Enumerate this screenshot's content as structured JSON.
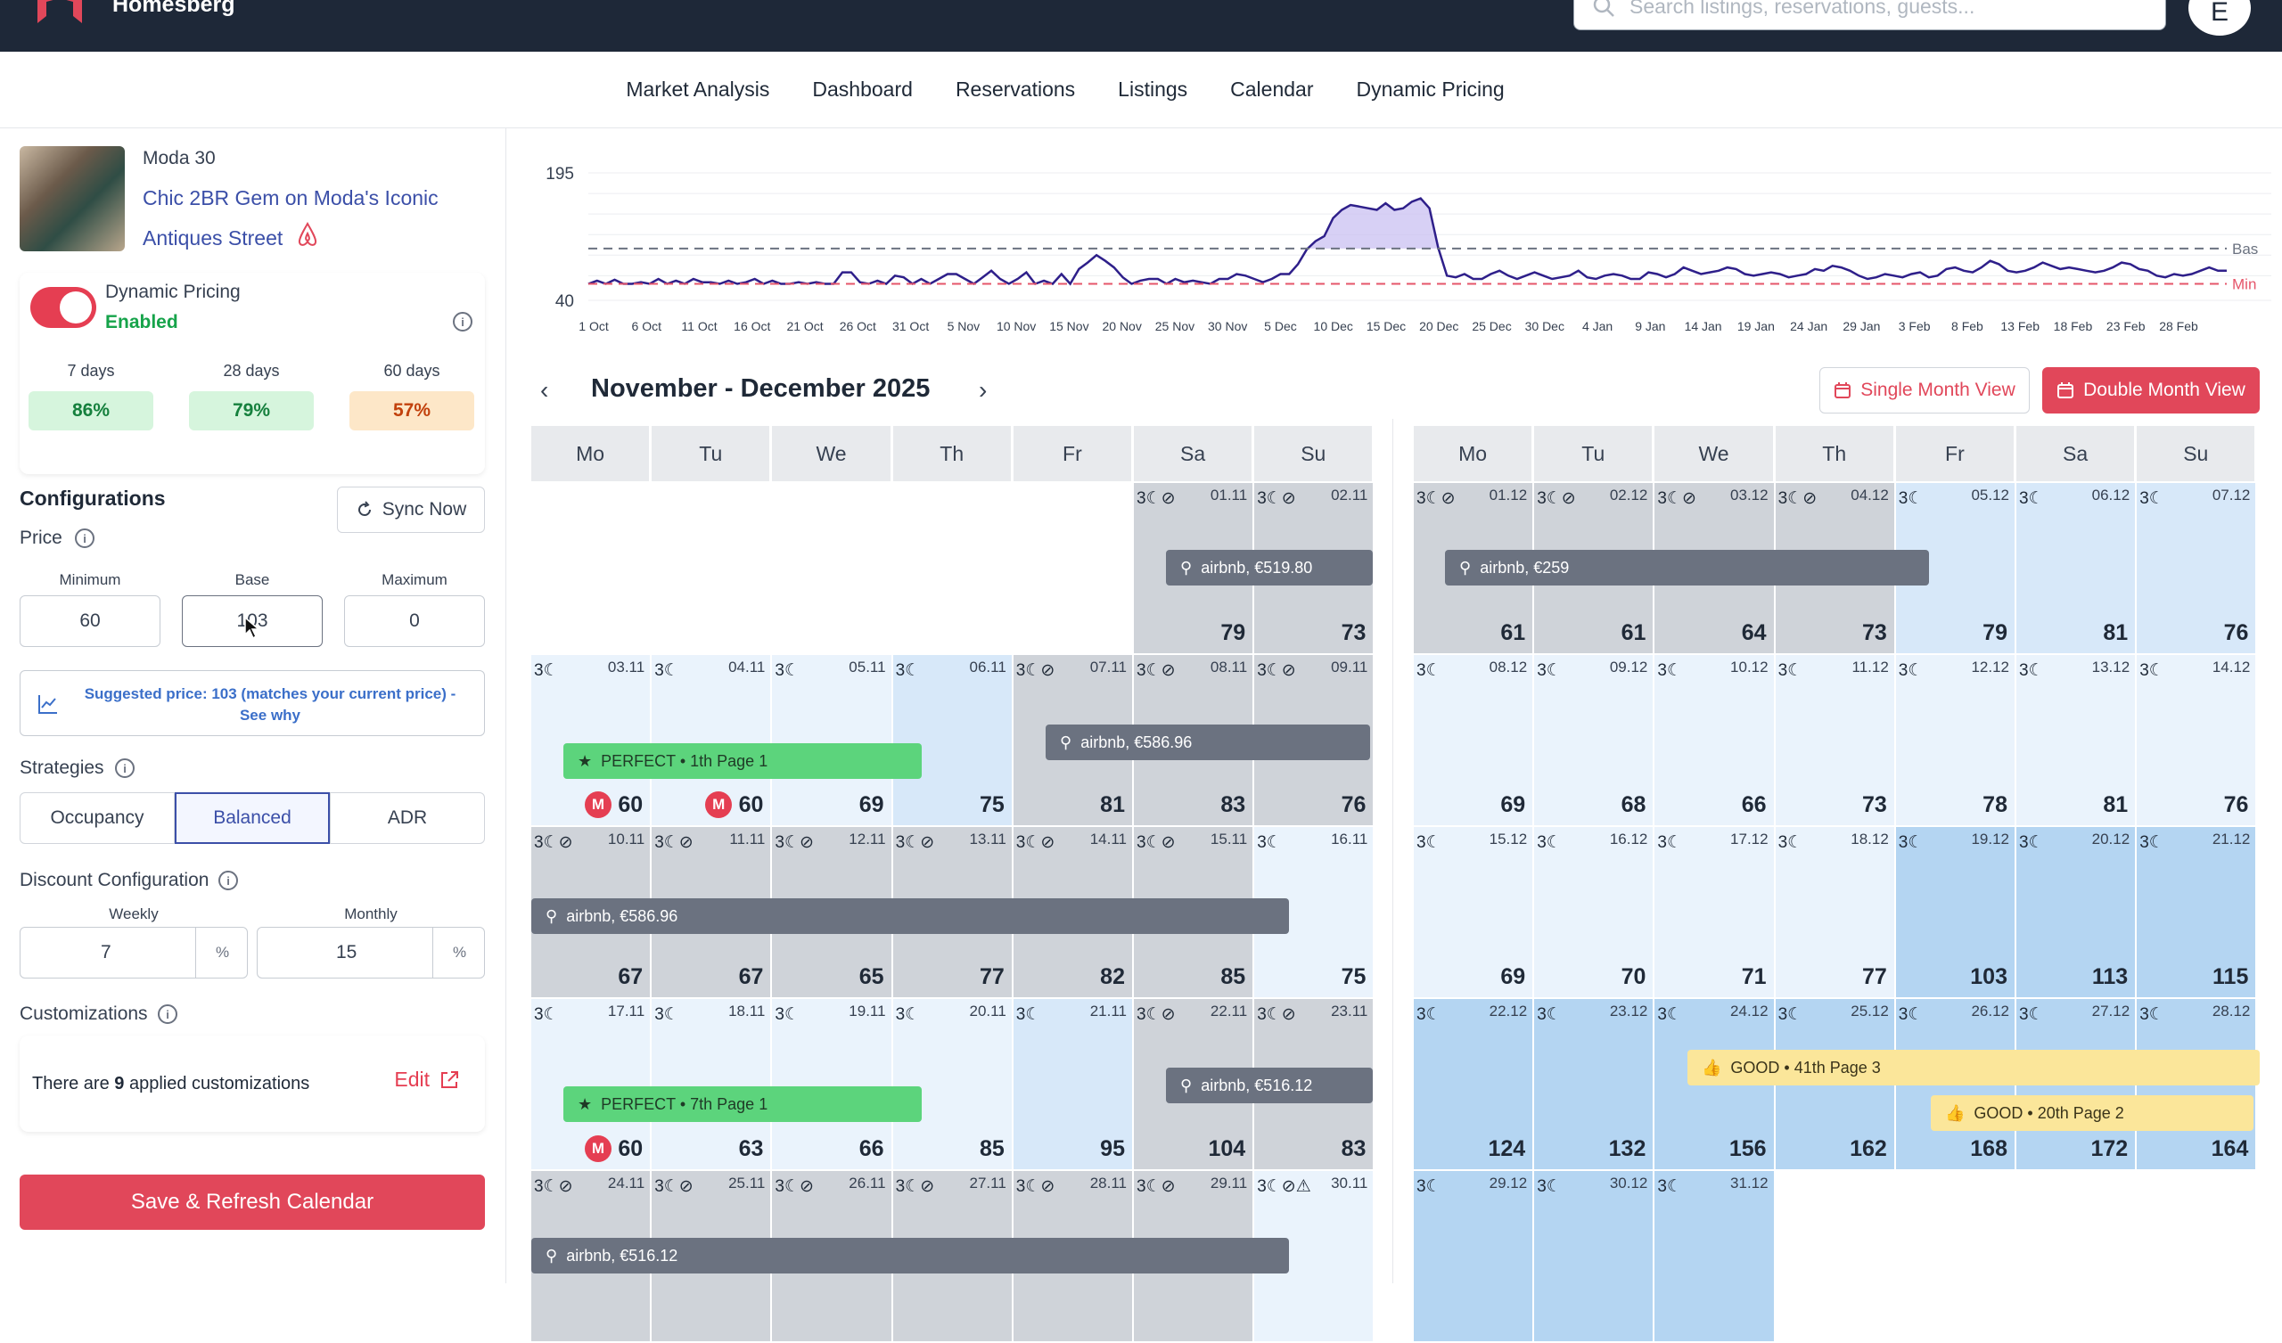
{
  "app": {
    "brand": "Homesberg",
    "search_placeholder": "Search listings, reservations, guests...",
    "avatar_letter": "E"
  },
  "nav": [
    "Market Analysis",
    "Dashboard",
    "Reservations",
    "Listings",
    "Calendar",
    "Dynamic Pricing"
  ],
  "listing": {
    "subtitle": "Moda 30",
    "title": "Chic 2BR Gem on Moda's Iconic Antiques Street"
  },
  "dynamic_pricing": {
    "label": "Dynamic Pricing",
    "status": "Enabled",
    "enabled": true
  },
  "occupancy": [
    {
      "label": "7 days",
      "value": "86%",
      "color": "#d6f5dd",
      "text": "#15803d"
    },
    {
      "label": "28 days",
      "value": "79%",
      "color": "#d6f5dd",
      "text": "#15803d"
    },
    {
      "label": "60 days",
      "value": "57%",
      "color": "#fde7c8",
      "text": "#c2410c"
    }
  ],
  "config": {
    "title": "Configurations",
    "sync_label": "Sync Now",
    "price_label": "Price",
    "min_label": "Minimum",
    "min": "60",
    "base_label": "Base",
    "base": "103",
    "max_label": "Maximum",
    "max": "0",
    "suggested": "Suggested price: 103 (matches your current price) - See why",
    "strategies_label": "Strategies",
    "strategies": [
      "Occupancy",
      "Balanced",
      "ADR"
    ],
    "strategy_selected": "Balanced",
    "discount_label": "Discount Configuration",
    "weekly_label": "Weekly",
    "weekly": "7",
    "monthly_label": "Monthly",
    "monthly": "15",
    "pct": "%",
    "custom_label": "Customizations",
    "custom_pre": "There are ",
    "custom_count": "9",
    "custom_post": " applied customizations",
    "edit": "Edit",
    "save": "Save & Refresh Calendar"
  },
  "chart_data": {
    "type": "area",
    "ylim": [
      40,
      195
    ],
    "y_ticks": [
      "195",
      "40"
    ],
    "x_ticks": [
      "1 Oct",
      "6 Oct",
      "11 Oct",
      "16 Oct",
      "21 Oct",
      "26 Oct",
      "31 Oct",
      "5 Nov",
      "10 Nov",
      "15 Nov",
      "20 Nov",
      "25 Nov",
      "30 Nov",
      "5 Dec",
      "10 Dec",
      "15 Dec",
      "20 Dec",
      "25 Dec",
      "30 Dec",
      "4 Jan",
      "9 Jan",
      "14 Jan",
      "19 Jan",
      "24 Jan",
      "29 Jan",
      "3 Feb",
      "8 Feb",
      "13 Feb",
      "18 Feb",
      "23 Feb",
      "28 Feb"
    ],
    "reference_lines": [
      {
        "label": "Bas",
        "value": 103,
        "color": "#6b7280"
      },
      {
        "label": "Min",
        "value": 60,
        "color": "#e5556a"
      }
    ],
    "series_color": "#2e1f8a",
    "values": [
      60,
      64,
      60,
      65,
      60,
      60,
      62,
      60,
      66,
      60,
      64,
      60,
      66,
      62,
      62,
      60,
      64,
      60,
      62,
      66,
      60,
      64,
      60,
      60,
      62,
      60,
      62,
      60,
      60,
      74,
      74,
      62,
      60,
      64,
      60,
      70,
      68,
      60,
      66,
      60,
      66,
      72,
      72,
      66,
      60,
      68,
      76,
      66,
      60,
      66,
      74,
      60,
      64,
      60,
      72,
      60,
      78,
      86,
      95,
      88,
      80,
      68,
      60,
      64,
      66,
      66,
      60,
      66,
      62,
      64,
      62,
      60,
      66,
      66,
      72,
      70,
      66,
      62,
      66,
      72,
      72,
      84,
      102,
      112,
      118,
      140,
      150,
      156,
      154,
      152,
      150,
      158,
      150,
      152,
      160,
      164,
      152,
      104,
      70,
      68,
      72,
      66,
      66,
      72,
      76,
      70,
      66,
      70,
      74,
      70,
      66,
      68,
      70,
      76,
      68,
      66,
      70,
      72,
      70,
      66,
      66,
      74,
      72,
      68,
      72,
      80,
      76,
      72,
      74,
      76,
      80,
      78,
      72,
      70,
      72,
      74,
      72,
      68,
      70,
      72,
      78,
      76,
      82,
      80,
      76,
      70,
      66,
      68,
      72,
      70,
      68,
      72,
      74,
      68,
      70,
      78,
      80,
      76,
      74,
      80,
      88,
      84,
      76,
      74,
      76,
      80,
      86,
      82,
      78,
      80,
      78,
      76,
      74,
      76,
      80,
      86,
      84,
      78,
      76,
      70,
      68,
      72,
      70,
      72,
      76,
      80,
      76,
      76
    ]
  },
  "calendar": {
    "title": "November - December 2025",
    "single_view": "Single Month View",
    "double_view": "Double Month View",
    "dow": [
      "Mo",
      "Tu",
      "We",
      "Th",
      "Fr",
      "Sa",
      "Su"
    ],
    "nov": [
      [
        null,
        null,
        null,
        null,
        null,
        {
          "d": "01.11",
          "p": "79",
          "i": "3☾⊘",
          "s": "b"
        },
        {
          "d": "02.11",
          "p": "73",
          "i": "3☾⊘",
          "s": "b"
        }
      ],
      [
        {
          "d": "03.11",
          "p": "60",
          "i": "3☾",
          "s": "l",
          "m": "M"
        },
        {
          "d": "04.11",
          "p": "60",
          "i": "3☾",
          "s": "l",
          "m": "M"
        },
        {
          "d": "05.11",
          "p": "69",
          "i": "3☾",
          "s": "l"
        },
        {
          "d": "06.11",
          "p": "75",
          "i": "3☾",
          "s": "m"
        },
        {
          "d": "07.11",
          "p": "81",
          "i": "3☾⊘",
          "s": "b"
        },
        {
          "d": "08.11",
          "p": "83",
          "i": "3☾⊘",
          "s": "b"
        },
        {
          "d": "09.11",
          "p": "76",
          "i": "3☾⊘",
          "s": "b"
        }
      ],
      [
        {
          "d": "10.11",
          "p": "67",
          "i": "3☾⊘",
          "s": "b"
        },
        {
          "d": "11.11",
          "p": "67",
          "i": "3☾⊘",
          "s": "b"
        },
        {
          "d": "12.11",
          "p": "65",
          "i": "3☾⊘",
          "s": "b"
        },
        {
          "d": "13.11",
          "p": "77",
          "i": "3☾⊘",
          "s": "b"
        },
        {
          "d": "14.11",
          "p": "82",
          "i": "3☾⊘",
          "s": "b"
        },
        {
          "d": "15.11",
          "p": "85",
          "i": "3☾⊘",
          "s": "b"
        },
        {
          "d": "16.11",
          "p": "75",
          "i": "3☾",
          "s": "l"
        }
      ],
      [
        {
          "d": "17.11",
          "p": "60",
          "i": "3☾",
          "s": "l",
          "m": "M"
        },
        {
          "d": "18.11",
          "p": "63",
          "i": "3☾",
          "s": "l"
        },
        {
          "d": "19.11",
          "p": "66",
          "i": "3☾",
          "s": "l"
        },
        {
          "d": "20.11",
          "p": "85",
          "i": "3☾",
          "s": "l"
        },
        {
          "d": "21.11",
          "p": "95",
          "i": "3☾",
          "s": "m"
        },
        {
          "d": "22.11",
          "p": "104",
          "i": "3☾⊘",
          "s": "b"
        },
        {
          "d": "23.11",
          "p": "83",
          "i": "3☾⊘",
          "s": "b"
        }
      ],
      [
        {
          "d": "24.11",
          "p": "",
          "i": "3☾⊘",
          "s": "b"
        },
        {
          "d": "25.11",
          "p": "",
          "i": "3☾⊘",
          "s": "b"
        },
        {
          "d": "26.11",
          "p": "",
          "i": "3☾⊘",
          "s": "b"
        },
        {
          "d": "27.11",
          "p": "",
          "i": "3☾⊘",
          "s": "b"
        },
        {
          "d": "28.11",
          "p": "",
          "i": "3☾⊘",
          "s": "b"
        },
        {
          "d": "29.11",
          "p": "",
          "i": "3☾⊘",
          "s": "b"
        },
        {
          "d": "30.11",
          "p": "",
          "i": "3☾⊘⚠",
          "s": "l"
        }
      ]
    ],
    "dec": [
      [
        {
          "d": "01.12",
          "p": "61",
          "i": "3☾⊘",
          "s": "b"
        },
        {
          "d": "02.12",
          "p": "61",
          "i": "3☾⊘",
          "s": "b"
        },
        {
          "d": "03.12",
          "p": "64",
          "i": "3☾⊘",
          "s": "b"
        },
        {
          "d": "04.12",
          "p": "73",
          "i": "3☾⊘",
          "s": "b"
        },
        {
          "d": "05.12",
          "p": "79",
          "i": "3☾",
          "s": "m"
        },
        {
          "d": "06.12",
          "p": "81",
          "i": "3☾",
          "s": "m"
        },
        {
          "d": "07.12",
          "p": "76",
          "i": "3☾",
          "s": "m"
        }
      ],
      [
        {
          "d": "08.12",
          "p": "69",
          "i": "3☾",
          "s": "l"
        },
        {
          "d": "09.12",
          "p": "68",
          "i": "3☾",
          "s": "l"
        },
        {
          "d": "10.12",
          "p": "66",
          "i": "3☾",
          "s": "l"
        },
        {
          "d": "11.12",
          "p": "73",
          "i": "3☾",
          "s": "l"
        },
        {
          "d": "12.12",
          "p": "78",
          "i": "3☾",
          "s": "l"
        },
        {
          "d": "13.12",
          "p": "81",
          "i": "3☾",
          "s": "l"
        },
        {
          "d": "14.12",
          "p": "76",
          "i": "3☾",
          "s": "l"
        }
      ],
      [
        {
          "d": "15.12",
          "p": "69",
          "i": "3☾",
          "s": "l"
        },
        {
          "d": "16.12",
          "p": "70",
          "i": "3☾",
          "s": "l"
        },
        {
          "d": "17.12",
          "p": "71",
          "i": "3☾",
          "s": "l"
        },
        {
          "d": "18.12",
          "p": "77",
          "i": "3☾",
          "s": "l"
        },
        {
          "d": "19.12",
          "p": "103",
          "i": "3☾",
          "s": "d"
        },
        {
          "d": "20.12",
          "p": "113",
          "i": "3☾",
          "s": "d"
        },
        {
          "d": "21.12",
          "p": "115",
          "i": "3☾",
          "s": "d"
        }
      ],
      [
        {
          "d": "22.12",
          "p": "124",
          "i": "3☾",
          "s": "d"
        },
        {
          "d": "23.12",
          "p": "132",
          "i": "3☾",
          "s": "d"
        },
        {
          "d": "24.12",
          "p": "156",
          "i": "3☾",
          "s": "d"
        },
        {
          "d": "25.12",
          "p": "162",
          "i": "3☾",
          "s": "d"
        },
        {
          "d": "26.12",
          "p": "168",
          "i": "3☾",
          "s": "d"
        },
        {
          "d": "27.12",
          "p": "172",
          "i": "3☾",
          "s": "d"
        },
        {
          "d": "28.12",
          "p": "164",
          "i": "3☾",
          "s": "d"
        }
      ],
      [
        {
          "d": "29.12",
          "p": "",
          "i": "3☾",
          "s": "d"
        },
        {
          "d": "30.12",
          "p": "",
          "i": "3☾",
          "s": "d"
        },
        {
          "d": "31.12",
          "p": "",
          "i": "3☾",
          "s": "d"
        },
        null,
        null,
        null,
        null
      ]
    ],
    "shades": {
      "b": "#cfd3d9",
      "l": "#eaf3fc",
      "m": "#d7e8f9",
      "d": "#b4d5f2"
    },
    "events": [
      {
        "text": "airbnb, €519.80",
        "kind": "gray",
        "icon": "⚲"
      },
      {
        "text": "airbnb, €586.96",
        "kind": "gray",
        "icon": "⚲"
      },
      {
        "text": "PERFECT • 1th Page 1",
        "kind": "green",
        "icon": "★"
      },
      {
        "text": "airbnb, €586.96",
        "kind": "gray",
        "icon": "⚲"
      },
      {
        "text": "PERFECT • 7th Page 1",
        "kind": "green",
        "icon": "★"
      },
      {
        "text": "airbnb, €516.12",
        "kind": "gray",
        "icon": "⚲"
      },
      {
        "text": "airbnb, €516.12",
        "kind": "gray",
        "icon": "⚲"
      },
      {
        "text": "airbnb, €259",
        "kind": "gray",
        "icon": "⚲"
      },
      {
        "text": "GOOD • 41th Page 3",
        "kind": "yellow",
        "icon": "👍"
      },
      {
        "text": "GOOD • 20th Page 2",
        "kind": "yellow",
        "icon": "👍"
      }
    ]
  }
}
